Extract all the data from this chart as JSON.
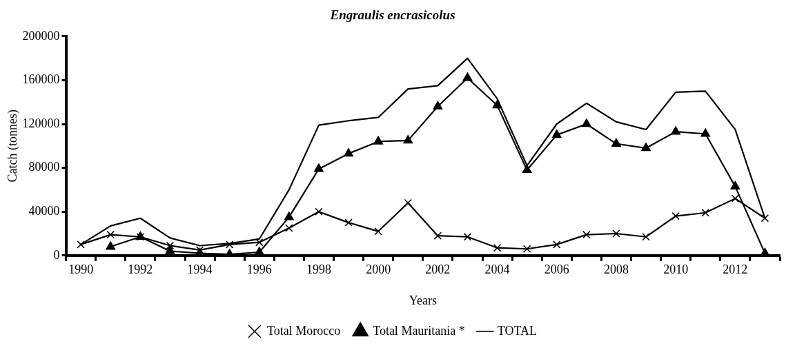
{
  "chart_data": {
    "type": "line",
    "title": "Engraulis encrasicolus",
    "xlabel": "Years",
    "ylabel": "Catch (tonnes)",
    "categories": [
      "1990",
      null,
      "1992",
      null,
      "1994",
      null,
      "1996",
      null,
      "1998",
      null,
      "2000",
      null,
      "2002",
      null,
      "2004",
      null,
      "2006",
      null,
      "2008",
      null,
      "2010",
      null,
      "2012",
      null
    ],
    "series": [
      {
        "name": "Total Morocco",
        "color": "#000000",
        "marker": "cross",
        "values": [
          10000,
          19000,
          17000,
          9000,
          5000,
          10000,
          12000,
          25000,
          40000,
          30000,
          22000,
          48000,
          18000,
          17000,
          7000,
          6000,
          10000,
          19000,
          20000,
          17000,
          36000,
          39000,
          52000,
          34000
        ]
      },
      {
        "name": "Total Mauritania *",
        "color": "#000000",
        "marker": "triangle",
        "values": [
          null,
          8000,
          17000,
          4000,
          2000,
          1000,
          3000,
          35000,
          79000,
          93000,
          104000,
          105000,
          136000,
          162000,
          137000,
          78000,
          110000,
          120000,
          102000,
          98000,
          113000,
          111000,
          63000,
          2000
        ]
      },
      {
        "name": "TOTAL",
        "color": "#000000",
        "marker": "none",
        "values": [
          10000,
          27000,
          34000,
          16000,
          9000,
          11000,
          15000,
          60000,
          119000,
          123000,
          126000,
          152000,
          155000,
          180000,
          143000,
          82000,
          120000,
          139000,
          122000,
          115000,
          149000,
          150000,
          115000,
          34000
        ]
      }
    ],
    "ylim": [
      0,
      200000
    ],
    "yticks": [
      0,
      40000,
      80000,
      120000,
      160000,
      200000
    ],
    "grid": false,
    "legend": "bottom"
  }
}
